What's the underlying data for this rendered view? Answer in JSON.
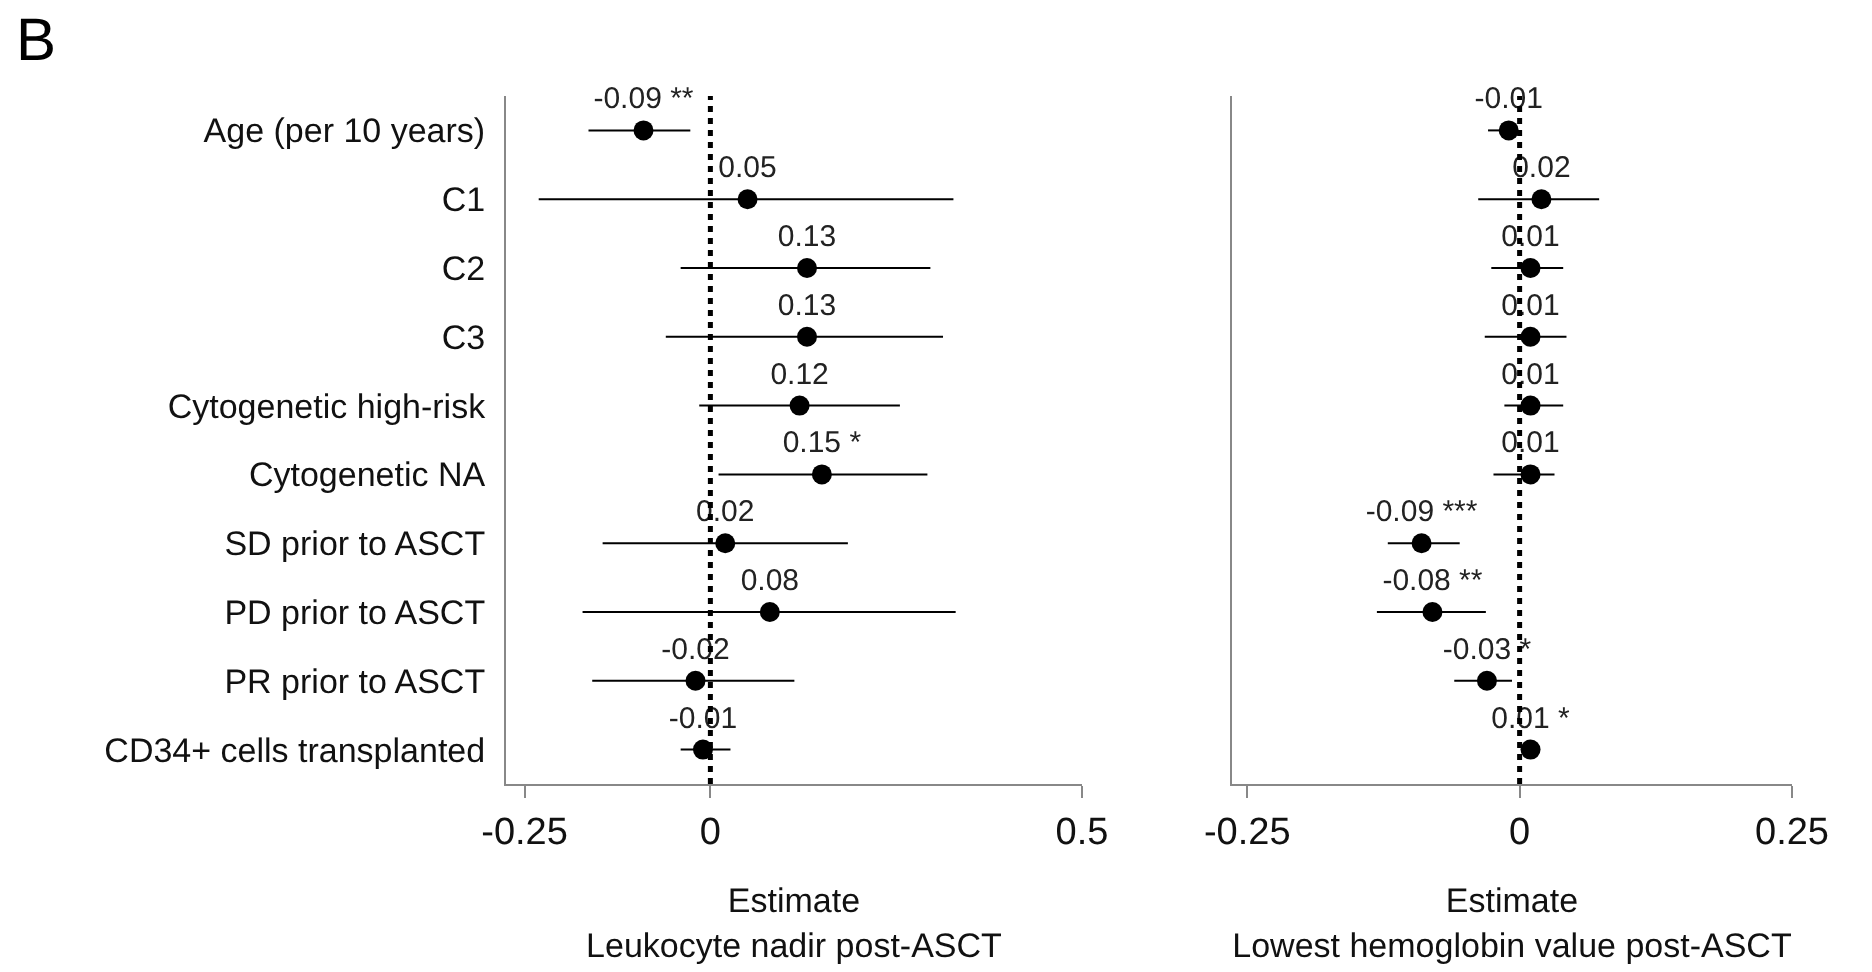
{
  "chart_data": [
    {
      "type": "scatter",
      "orientation": "horizontal",
      "annotations": [
        "B"
      ],
      "xlabel": "Estimate\nLeukocyte nadir post-ASCT",
      "xlim": [
        -0.275,
        0.5
      ],
      "xticks": [
        -0.25,
        0,
        0.5
      ],
      "grid": false,
      "marker": "circle",
      "color": "#000000",
      "categories": [
        "Age (per 10 years)",
        "C1",
        "C2",
        "C3",
        "Cytogenetic high-risk",
        "Cytogenetic NA",
        "SD prior to ASCT",
        "PD prior to ASCT",
        "PR prior to ASCT",
        "CD34+ cells transplanted"
      ],
      "values": [
        -0.09,
        0.05,
        0.13,
        0.13,
        0.12,
        0.15,
        0.02,
        0.08,
        -0.02,
        -0.01
      ],
      "value_labels": [
        "-0.09 **",
        "0.05",
        "0.13",
        "0.13",
        "0.12",
        "0.15 *",
        "0.02",
        "0.08",
        "-0.02",
        "-0.01"
      ],
      "errors": [
        [
          -0.164,
          -0.027
        ],
        [
          -0.231,
          0.327
        ],
        [
          -0.04,
          0.296
        ],
        [
          -0.06,
          0.313
        ],
        [
          -0.015,
          0.255
        ],
        [
          0.011,
          0.292
        ],
        [
          -0.145,
          0.185
        ],
        [
          -0.172,
          0.33
        ],
        [
          -0.159,
          0.113
        ],
        [
          -0.04,
          0.027
        ]
      ],
      "ref_lines": [
        {
          "axis": "x",
          "value": 0,
          "line_style": "dotted",
          "color": "#000000"
        }
      ]
    },
    {
      "type": "scatter",
      "orientation": "horizontal",
      "tick_labels": "x",
      "xlabel": "Estimate\nLowest hemoglobin value post-ASCT",
      "xlim": [
        -0.264,
        0.25
      ],
      "xticks": [
        -0.25,
        0,
        0.25
      ],
      "grid": false,
      "marker": "circle",
      "color": "#000000",
      "categories": [
        "Age (per 10 years)",
        "C1",
        "C2",
        "C3",
        "Cytogenetic high-risk",
        "Cytogenetic NA",
        "SD prior to ASCT",
        "PD prior to ASCT",
        "PR prior to ASCT",
        "CD34+ cells transplanted"
      ],
      "values": [
        -0.01,
        0.02,
        0.01,
        0.01,
        0.01,
        0.01,
        -0.09,
        -0.08,
        -0.03,
        0.01
      ],
      "value_labels": [
        "-0.01",
        "0.02",
        "0.01",
        "0.01",
        "0.01",
        "0.01",
        "-0.09 ***",
        "-0.08 **",
        "-0.03 *",
        "0.01 *"
      ],
      "errors": [
        [
          -0.029,
          -0.006
        ],
        [
          -0.038,
          0.073
        ],
        [
          -0.026,
          0.04
        ],
        [
          -0.032,
          0.043
        ],
        [
          -0.014,
          0.04
        ],
        [
          -0.024,
          0.032
        ],
        [
          -0.121,
          -0.055
        ],
        [
          -0.131,
          -0.031
        ],
        [
          -0.06,
          -0.007
        ],
        [
          0.005,
          0.015
        ]
      ],
      "ref_lines": [
        {
          "axis": "x",
          "value": 0,
          "line_style": "dotted",
          "color": "#000000"
        }
      ]
    }
  ]
}
